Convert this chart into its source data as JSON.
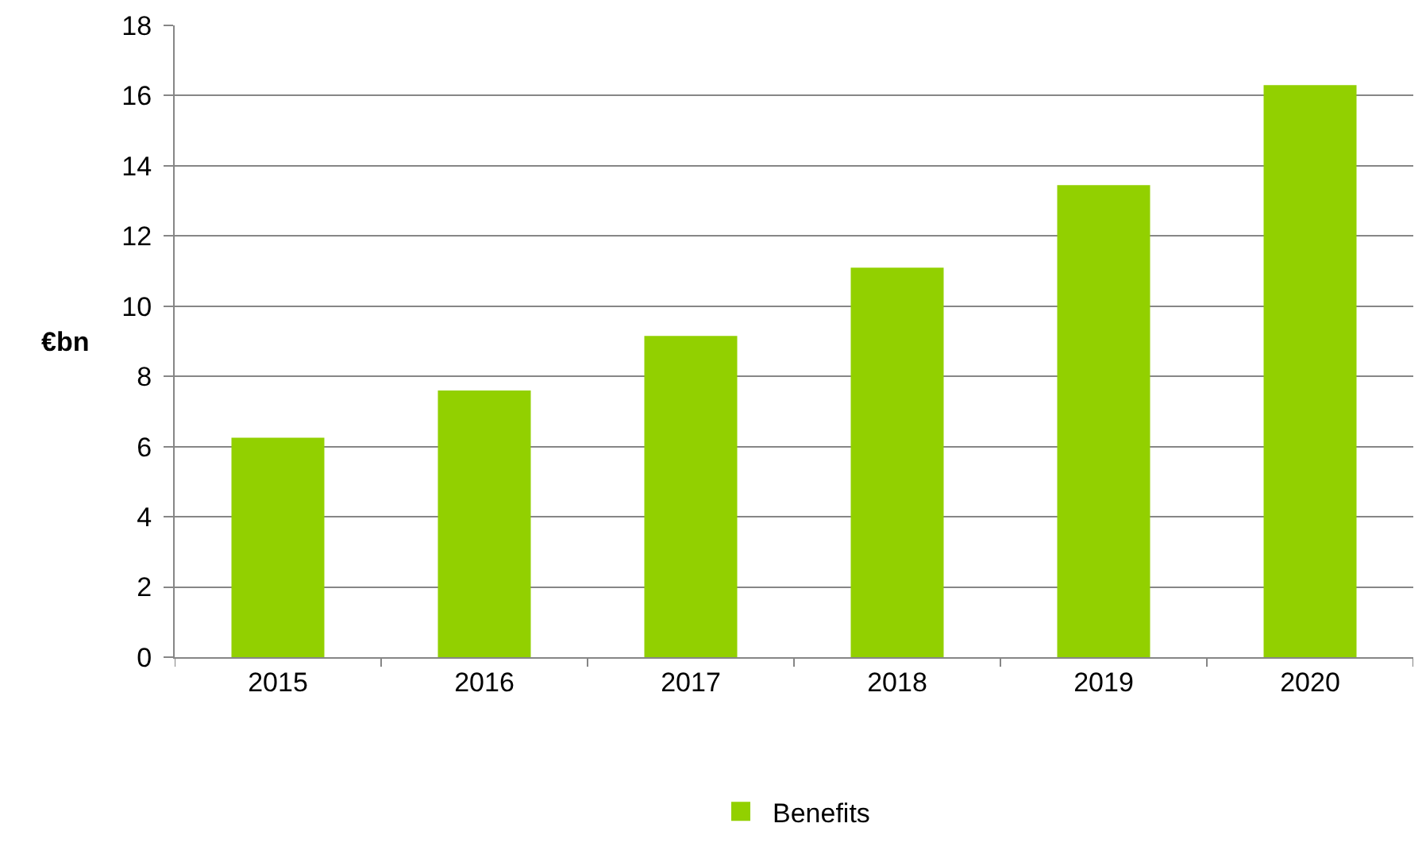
{
  "chart_data": {
    "type": "bar",
    "ylabel": "€bn",
    "categories": [
      "2015",
      "2016",
      "2017",
      "2018",
      "2019",
      "2020"
    ],
    "series": [
      {
        "name": "Benefits",
        "color": "#92d000",
        "values": [
          6.25,
          7.6,
          9.15,
          11.1,
          13.45,
          16.3
        ]
      }
    ],
    "ylim": [
      0,
      18
    ],
    "yticks": [
      0,
      2,
      4,
      6,
      8,
      10,
      12,
      14,
      16,
      18
    ],
    "grid": "y",
    "legend": "bottom"
  }
}
